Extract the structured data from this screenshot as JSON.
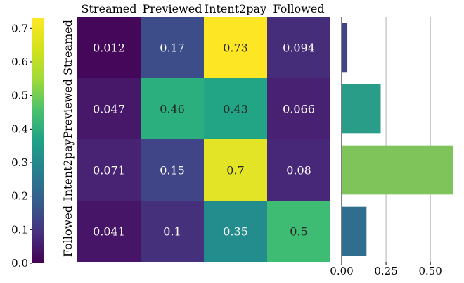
{
  "chart_data": [
    {
      "type": "heatmap",
      "title": "",
      "columns": [
        "Streamed",
        "Previewed",
        "Intent2pay",
        "Followed"
      ],
      "rows": [
        "Streamed",
        "Previewed",
        "Intent2pay",
        "Followed"
      ],
      "values": [
        [
          0.012,
          0.17,
          0.73,
          0.094
        ],
        [
          0.047,
          0.46,
          0.43,
          0.066
        ],
        [
          0.071,
          0.15,
          0.7,
          0.08
        ],
        [
          0.041,
          0.1,
          0.35,
          0.5
        ]
      ],
      "cell_labels": [
        [
          "0.012",
          "0.17",
          "0.73",
          "0.094"
        ],
        [
          "0.047",
          "0.46",
          "0.43",
          "0.066"
        ],
        [
          "0.071",
          "0.15",
          "0.7",
          "0.08"
        ],
        [
          "0.041",
          "0.1",
          "0.35",
          "0.5"
        ]
      ],
      "colormap": "viridis",
      "colorbar": {
        "range": [
          0,
          0.73
        ],
        "ticks": [
          0.0,
          0.1,
          0.2,
          0.3,
          0.4,
          0.5,
          0.6,
          0.7
        ],
        "tick_labels": [
          "0.0",
          "0.1",
          "0.2",
          "0.3",
          "0.4",
          "0.5",
          "0.6",
          "0.7"
        ],
        "placement": "left"
      }
    },
    {
      "type": "bar",
      "orientation": "horizontal",
      "title": "",
      "categories": [
        "Streamed",
        "Previewed",
        "Intent2pay",
        "Followed"
      ],
      "values": [
        0.032,
        0.22,
        0.63,
        0.14
      ],
      "colors": [
        "#414487",
        "#2a9d89",
        "#7fc45a",
        "#2f6e8e"
      ],
      "xlim": [
        0,
        0.65
      ],
      "xticks": [
        0.0,
        0.25,
        0.5
      ],
      "xtick_labels": [
        "0.00",
        "0.25",
        "0.50"
      ],
      "grid": "vertical"
    }
  ]
}
